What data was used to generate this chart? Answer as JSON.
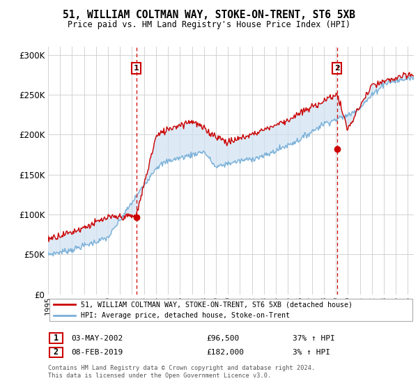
{
  "title": "51, WILLIAM COLTMAN WAY, STOKE-ON-TRENT, ST6 5XB",
  "subtitle": "Price paid vs. HM Land Registry's House Price Index (HPI)",
  "ylim": [
    0,
    310000
  ],
  "yticks": [
    0,
    50000,
    100000,
    150000,
    200000,
    250000,
    300000
  ],
  "ytick_labels": [
    "£0",
    "£50K",
    "£100K",
    "£150K",
    "£200K",
    "£250K",
    "£300K"
  ],
  "hpi_color": "#7ab0d8",
  "hpi_fill_color": "#cfe2f3",
  "price_color": "#cc0000",
  "annotation_line_color": "#cc0000",
  "background_color": "#ffffff",
  "grid_color": "#cccccc",
  "legend_label_price": "51, WILLIAM COLTMAN WAY, STOKE-ON-TRENT, ST6 5XB (detached house)",
  "legend_label_hpi": "HPI: Average price, detached house, Stoke-on-Trent",
  "sale1_label": "1",
  "sale1_date": "03-MAY-2002",
  "sale1_price": "£96,500",
  "sale1_hpi": "37% ↑ HPI",
  "sale1_year": 2002.35,
  "sale1_value": 96500,
  "sale2_label": "2",
  "sale2_date": "08-FEB-2019",
  "sale2_price": "£182,000",
  "sale2_hpi": "3% ↑ HPI",
  "sale2_year": 2019.1,
  "sale2_value": 182000,
  "footer_line1": "Contains HM Land Registry data © Crown copyright and database right 2024.",
  "footer_line2": "This data is licensed under the Open Government Licence v3.0.",
  "xstart": 1995,
  "xend": 2025.5
}
